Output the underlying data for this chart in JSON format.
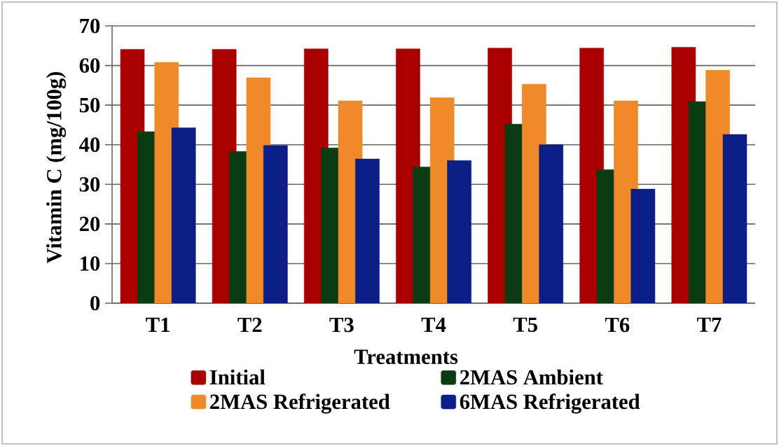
{
  "chart_data": {
    "type": "bar",
    "xlabel": "Treatments",
    "ylabel": "Vitamin C (mg/100g)",
    "categories": [
      "T1",
      "T2",
      "T3",
      "T4",
      "T5",
      "T6",
      "T7"
    ],
    "series": [
      {
        "name": "Initial",
        "color": "#a80000",
        "values": [
          64.1,
          64.1,
          64.2,
          64.2,
          64.4,
          64.4,
          64.6
        ]
      },
      {
        "name": "2MAS Ambient",
        "color": "#0b3b13",
        "values": [
          43.3,
          38.3,
          39.2,
          34.4,
          45.2,
          33.7,
          50.9
        ]
      },
      {
        "name": "2MAS Refrigerated",
        "color": "#f0892a",
        "values": [
          60.8,
          56.9,
          51.1,
          51.9,
          55.3,
          51.1,
          58.8
        ]
      },
      {
        "name": "6MAS Refrigerated",
        "color": "#0b1e86",
        "values": [
          44.3,
          39.8,
          36.4,
          36.0,
          40.0,
          28.8,
          42.6
        ]
      }
    ],
    "ylim": [
      0,
      70
    ],
    "yticks": [
      0,
      10,
      20,
      30,
      40,
      50,
      60,
      70
    ],
    "grid": "y",
    "legend": "bottom"
  }
}
